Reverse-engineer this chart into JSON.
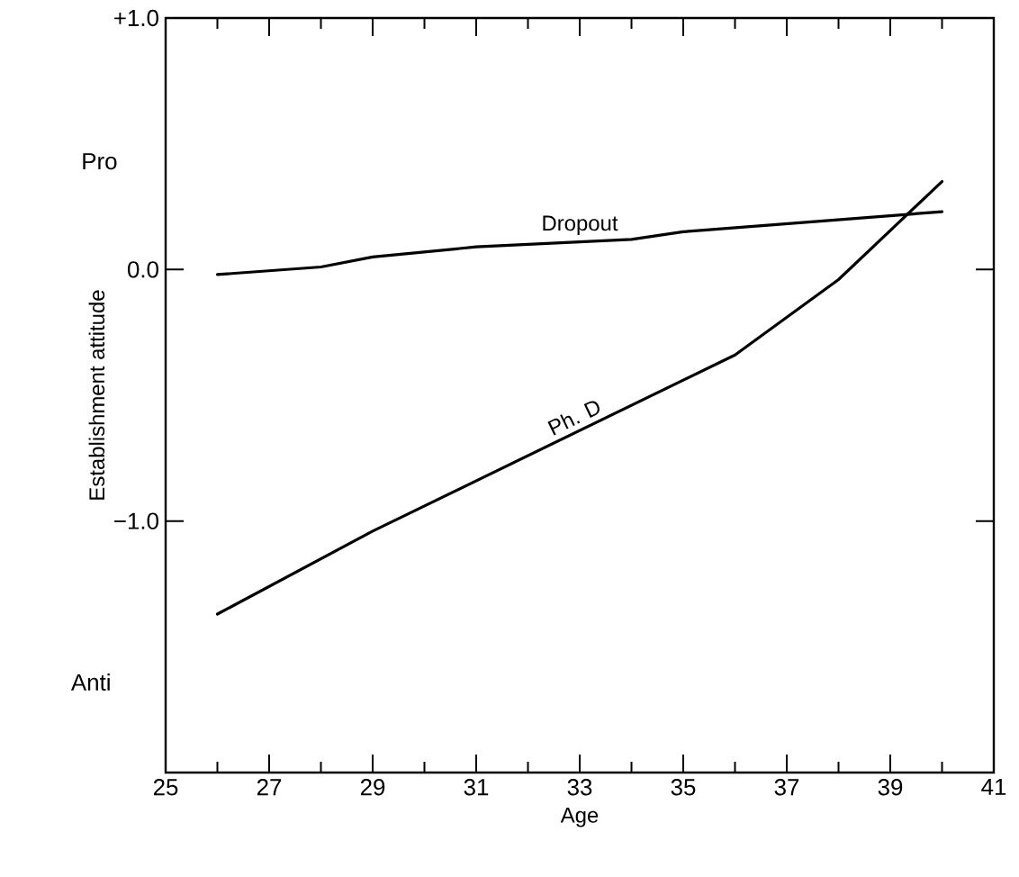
{
  "chart_data": {
    "type": "line",
    "xlabel": "Age",
    "ylabel": "Establishment attitude",
    "annotations": [
      "Pro",
      "Anti"
    ],
    "xlim": [
      25,
      41
    ],
    "ylim": [
      -2,
      1
    ],
    "xticks": [
      25,
      {
        "value": 26,
        "label": null
      },
      27,
      {
        "value": 28,
        "label": null
      },
      29,
      {
        "value": 30,
        "label": null
      },
      31,
      {
        "value": 32,
        "label": null
      },
      33,
      {
        "value": 34,
        "label": null
      },
      35,
      {
        "value": 36,
        "label": null
      },
      37,
      {
        "value": 38,
        "label": null
      },
      39,
      {
        "value": 40,
        "label": null
      },
      41
    ],
    "yticks": [
      {
        "value": 1,
        "label": "+1.0"
      },
      {
        "value": 0,
        "label": "0.0"
      },
      {
        "value": -1,
        "label": "−1.0"
      }
    ],
    "marker": "none",
    "line_style": "solid",
    "series": [
      {
        "name": "Dropout",
        "color": "#000000",
        "x": [
          26,
          28,
          29,
          31,
          34,
          35,
          40
        ],
        "values": [
          -0.02,
          0.01,
          0.05,
          0.09,
          0.12,
          0.15,
          0.23
        ]
      },
      {
        "name": "Ph. D",
        "color": "#000000",
        "x": [
          26,
          29,
          36,
          38,
          40
        ],
        "values": [
          -1.37,
          -1.04,
          -0.34,
          -0.04,
          0.35
        ]
      }
    ]
  }
}
